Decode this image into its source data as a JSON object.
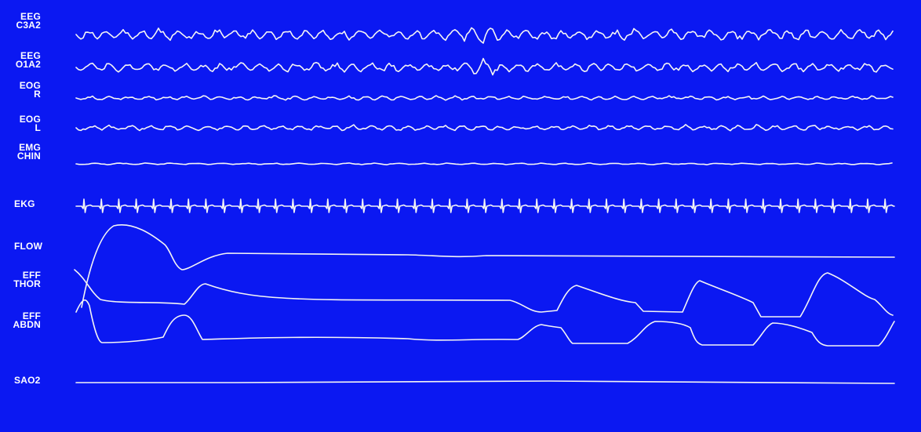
{
  "background_color": "#0b18f2",
  "trace_color": "#f4f4f4",
  "chart_data": {
    "type": "line",
    "title": "",
    "channels": [
      {
        "key": "eeg_c3a2",
        "label_lines": [
          "EEG",
          "C3A2"
        ]
      },
      {
        "key": "eeg_o1a2",
        "label_lines": [
          "EEG",
          "O1A2"
        ]
      },
      {
        "key": "eog_r",
        "label_lines": [
          "EOG",
          "R"
        ]
      },
      {
        "key": "eog_l",
        "label_lines": [
          "EOG",
          "L"
        ]
      },
      {
        "key": "emg_chin",
        "label_lines": [
          "EMG",
          "CHIN"
        ]
      },
      {
        "key": "ekg",
        "label_lines": [
          "EKG"
        ]
      },
      {
        "key": "flow",
        "label_lines": [
          "FLOW"
        ]
      },
      {
        "key": "eff_thor",
        "label_lines": [
          "EFF",
          "THOR"
        ]
      },
      {
        "key": "eff_abdn",
        "label_lines": [
          "EFF",
          "ABDN"
        ]
      },
      {
        "key": "sao2",
        "label_lines": [
          "SAO2"
        ]
      }
    ]
  }
}
